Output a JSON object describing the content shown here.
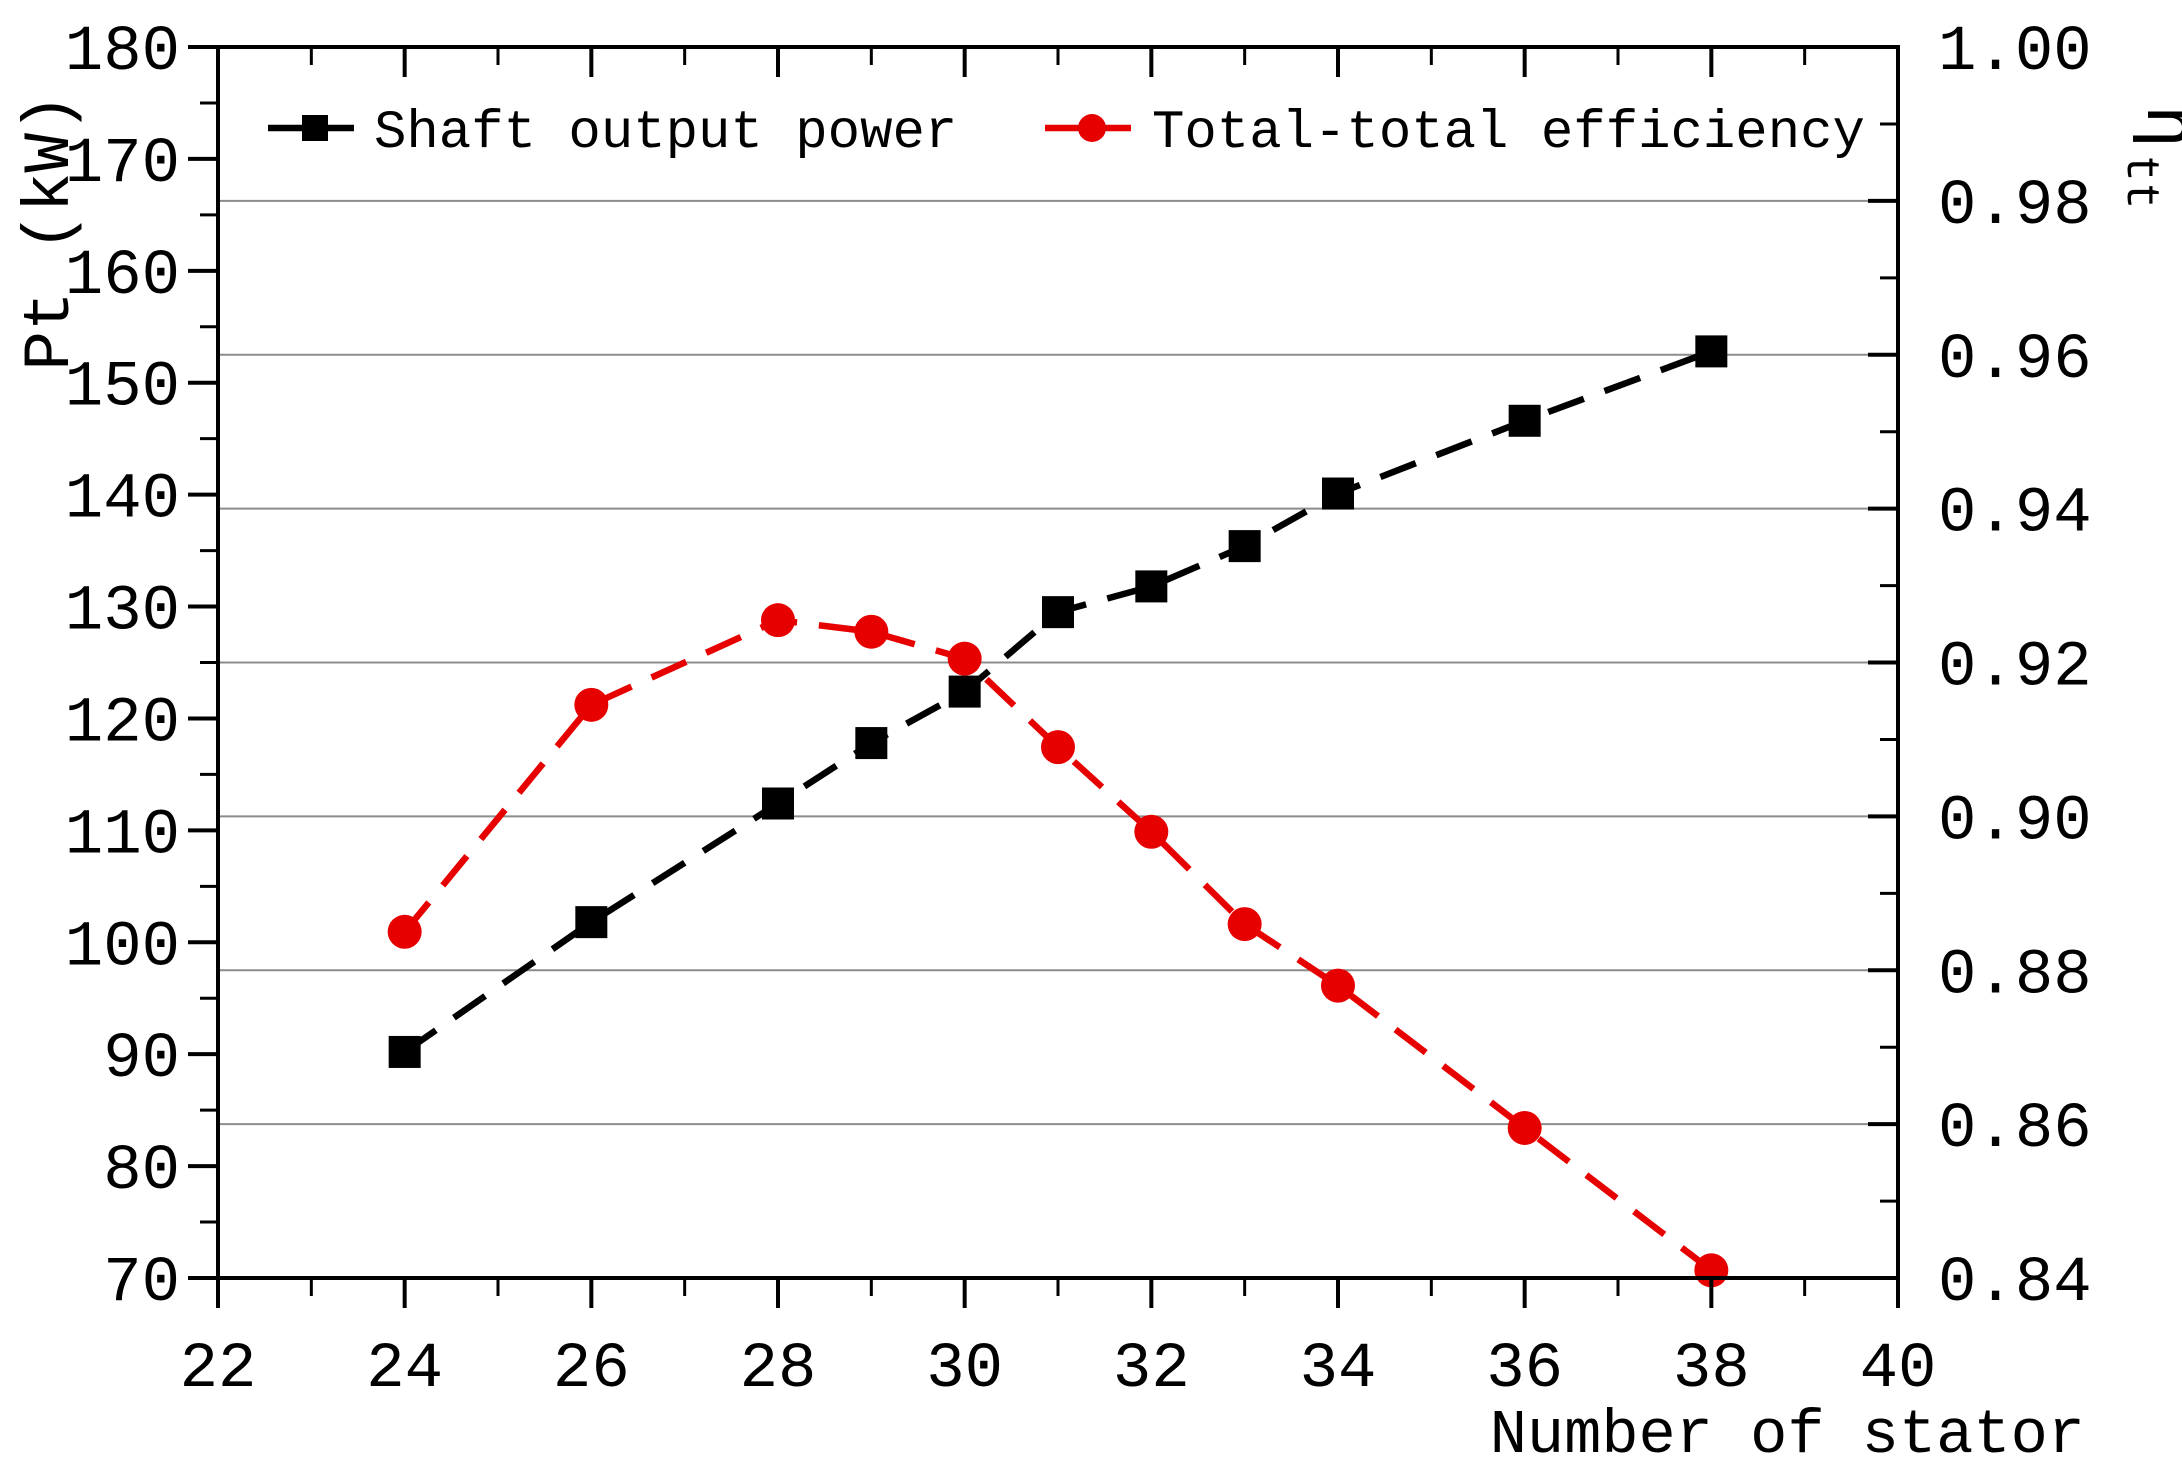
{
  "page": {
    "background": "#ffffff"
  },
  "chart_data": {
    "type": "line",
    "x": [
      24,
      26,
      28,
      29,
      30,
      31,
      32,
      33,
      34,
      36,
      38
    ],
    "series": [
      {
        "name": "Shaft output power",
        "axis": "left",
        "color": "#000000",
        "marker": "square",
        "values": [
          90.2,
          101.8,
          112.4,
          117.8,
          122.4,
          129.5,
          131.8,
          135.4,
          140.1,
          146.6,
          152.8
        ]
      },
      {
        "name": "Total-total efficiency",
        "axis": "right",
        "color": "#e60000",
        "marker": "circle",
        "values": [
          0.885,
          0.9145,
          0.9255,
          0.924,
          0.9205,
          0.909,
          0.898,
          0.886,
          0.878,
          0.8595,
          0.841
        ]
      }
    ],
    "xlabel": "Number of stator",
    "ylabel_left": "Pt (kW)",
    "ylabel_right": "η",
    "ylabel_right_subscript": "tt",
    "xlim": [
      22,
      40
    ],
    "ylim_left": [
      70,
      180
    ],
    "ylim_right": [
      0.84,
      1.0
    ],
    "x_tick_values": [
      22,
      24,
      26,
      28,
      30,
      32,
      34,
      36,
      38,
      40
    ],
    "x_tick_labels": [
      "22",
      "24",
      "26",
      "28",
      "30",
      "32",
      "34",
      "36",
      "38",
      "40"
    ],
    "x_minor_step": 1,
    "left_tick_values": [
      180,
      170,
      160,
      150,
      140,
      130,
      120,
      110,
      100,
      90,
      80,
      70
    ],
    "left_tick_labels": [
      "180",
      "170",
      "160",
      "150",
      "140",
      "130",
      "120",
      "110",
      "100",
      "90",
      "80",
      "70"
    ],
    "left_minor_step": 5,
    "right_tick_values": [
      1.0,
      0.98,
      0.96,
      0.94,
      0.92,
      0.9,
      0.88,
      0.86,
      0.84
    ],
    "right_tick_labels": [
      "1.00",
      "0.98",
      "0.96",
      "0.94",
      "0.92",
      "0.90",
      "0.88",
      "0.86",
      "0.84"
    ],
    "right_minor_step": 0.01,
    "grid_line_values_right": [
      0.86,
      0.88,
      0.9,
      0.92,
      0.94,
      0.96,
      0.98
    ],
    "grid": "horizontal",
    "legend_position": "top-inside"
  },
  "styles": {
    "axis_color": "#000000",
    "grid_color": "#8c8c8c",
    "power_color": "#000000",
    "efficiency_color": "#e60000",
    "text_color": "#000000"
  }
}
